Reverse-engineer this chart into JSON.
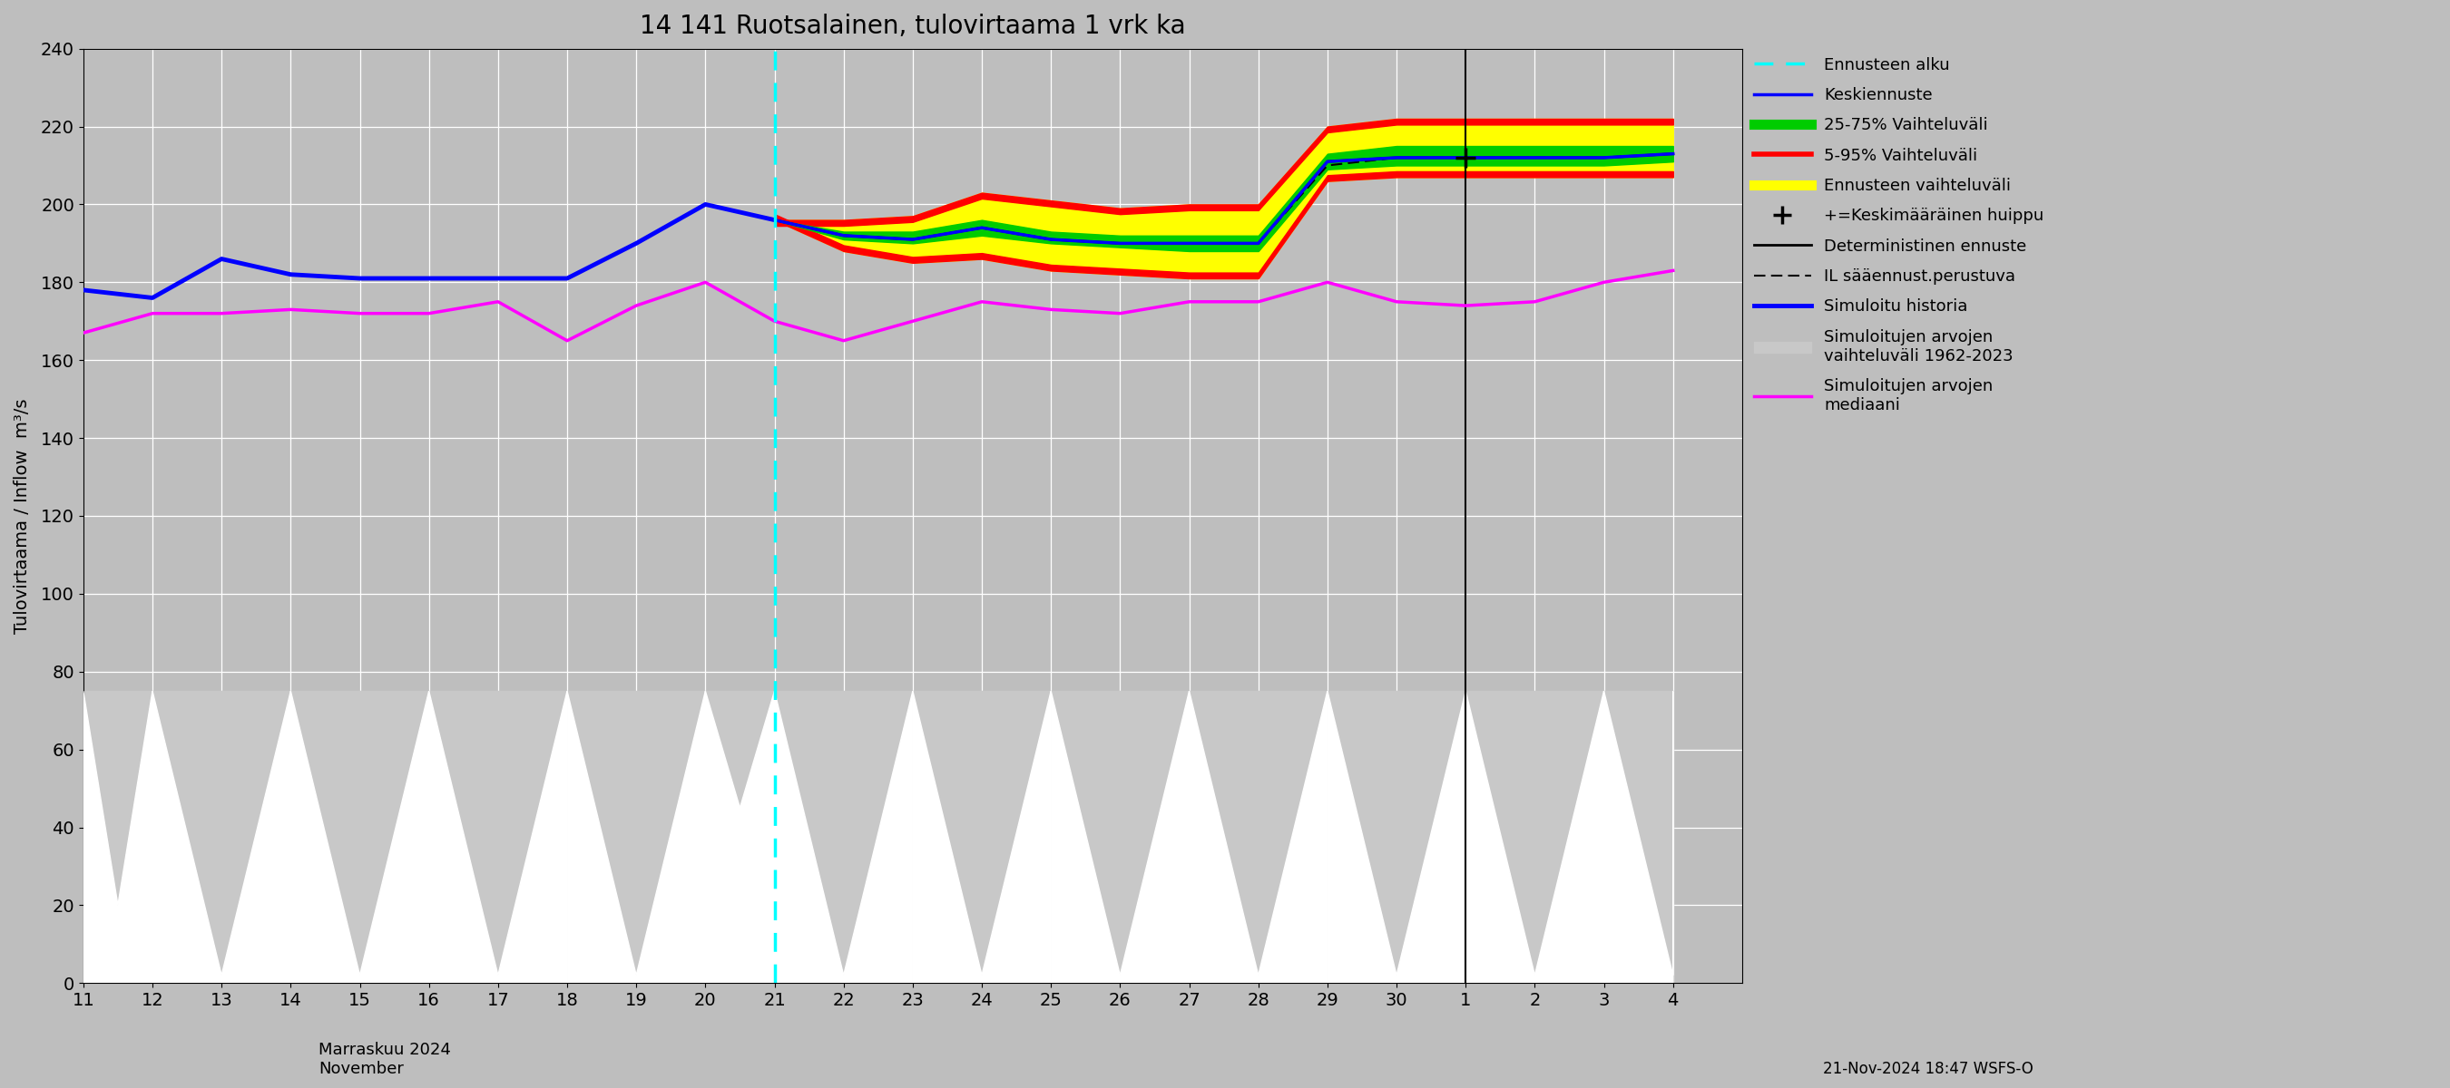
{
  "title": "14 141 Ruotsalainen, tulovirtaama 1 vrk ka",
  "ylabel": "Tulovirtaama / Inflow  m³/s",
  "footnote": "21-Nov-2024 18:47 WSFS-O",
  "bg_color": "#bebebe",
  "ylim": [
    0,
    240
  ],
  "yticks": [
    0,
    20,
    40,
    60,
    80,
    100,
    120,
    140,
    160,
    180,
    200,
    220,
    240
  ],
  "xlim": [
    11,
    35
  ],
  "x_history": [
    11,
    12,
    13,
    14,
    15,
    16,
    17,
    18,
    19,
    20,
    21
  ],
  "sim_history": [
    178,
    176,
    186,
    182,
    181,
    181,
    181,
    181,
    190,
    200,
    196
  ],
  "forecast_start_x": 21,
  "x_forecast": [
    21,
    22,
    23,
    24,
    25,
    26,
    27,
    28,
    29,
    30,
    31,
    32,
    33,
    34
  ],
  "keskiennuste": [
    196,
    192,
    191,
    194,
    191,
    190,
    190,
    190,
    211,
    212,
    212,
    212,
    212,
    213
  ],
  "p5": [
    196,
    188,
    185,
    186,
    183,
    182,
    181,
    181,
    206,
    207,
    207,
    207,
    207,
    207
  ],
  "p95": [
    196,
    196,
    197,
    203,
    201,
    199,
    200,
    200,
    220,
    222,
    222,
    222,
    222,
    222
  ],
  "p25": [
    196,
    191,
    190,
    192,
    190,
    189,
    188,
    188,
    209,
    210,
    210,
    210,
    210,
    211
  ],
  "p75": [
    196,
    193,
    193,
    196,
    193,
    192,
    192,
    192,
    213,
    215,
    215,
    215,
    215,
    215
  ],
  "deterministic": [
    196,
    192,
    191,
    194,
    191,
    190,
    190,
    190,
    211,
    212,
    212,
    212,
    212,
    213
  ],
  "il_saannust": [
    196,
    192,
    191,
    194,
    191,
    190,
    190,
    190,
    210,
    212,
    212,
    212,
    212,
    213
  ],
  "x_xticks": [
    11,
    12,
    13,
    14,
    15,
    16,
    17,
    18,
    19,
    20,
    21,
    22,
    23,
    24,
    25,
    26,
    27,
    28,
    29,
    30,
    31,
    32,
    33,
    34
  ],
  "xtick_labels": [
    "11",
    "12",
    "13",
    "14",
    "15",
    "16",
    "17",
    "18",
    "19",
    "20",
    "21",
    "22",
    "23",
    "24",
    "25",
    "26",
    "27",
    "28",
    "29",
    "30",
    "1",
    "2",
    "3",
    "4"
  ],
  "med_x": [
    11,
    12,
    13,
    14,
    15,
    16,
    17,
    18,
    19,
    20,
    21,
    22,
    23,
    24,
    25,
    26,
    27,
    28,
    29,
    30,
    31,
    32,
    33,
    34
  ],
  "med_y": [
    167,
    172,
    172,
    173,
    172,
    172,
    175,
    165,
    174,
    180,
    170,
    165,
    170,
    175,
    173,
    172,
    175,
    175,
    180,
    175,
    174,
    175,
    180,
    183
  ],
  "peak_marker_x": 31,
  "peak_marker_y": 212,
  "month_boundary_x": 31,
  "sim_band_x": [
    11,
    12,
    13,
    14,
    15,
    16,
    17,
    18,
    19,
    20,
    21,
    22,
    23,
    24,
    25,
    26,
    27,
    28,
    29,
    30,
    31,
    32,
    33,
    34
  ],
  "sim_band_top": [
    75,
    75,
    75,
    75,
    75,
    75,
    75,
    75,
    75,
    75,
    75,
    75,
    75,
    75,
    75,
    75,
    75,
    75,
    75,
    75,
    75,
    75,
    75,
    75
  ],
  "white_triangles": [
    {
      "x": [
        11.0,
        11.5,
        12.0
      ],
      "y": [
        75,
        20,
        75
      ]
    },
    {
      "x": [
        12.0,
        13.0,
        14.0
      ],
      "y": [
        75,
        2,
        75
      ]
    },
    {
      "x": [
        14.0,
        15.0,
        16.0
      ],
      "y": [
        75,
        2,
        75
      ]
    },
    {
      "x": [
        16.0,
        17.0,
        18.0
      ],
      "y": [
        75,
        2,
        75
      ]
    },
    {
      "x": [
        18.0,
        19.0,
        20.0
      ],
      "y": [
        75,
        2,
        75
      ]
    },
    {
      "x": [
        20.0,
        20.5,
        21.0
      ],
      "y": [
        75,
        45,
        75
      ]
    },
    {
      "x": [
        21.0,
        22.0,
        23.0
      ],
      "y": [
        75,
        2,
        75
      ]
    },
    {
      "x": [
        23.0,
        24.0,
        25.0
      ],
      "y": [
        75,
        2,
        75
      ]
    },
    {
      "x": [
        25.0,
        26.0,
        27.0
      ],
      "y": [
        75,
        2,
        75
      ]
    },
    {
      "x": [
        27.0,
        28.0,
        29.0
      ],
      "y": [
        75,
        2,
        75
      ]
    },
    {
      "x": [
        29.0,
        30.0,
        31.0
      ],
      "y": [
        75,
        2,
        75
      ]
    },
    {
      "x": [
        31.0,
        32.0,
        33.0
      ],
      "y": [
        75,
        2,
        75
      ]
    },
    {
      "x": [
        33.0,
        34.0,
        34.0
      ],
      "y": [
        75,
        2,
        75
      ]
    }
  ]
}
